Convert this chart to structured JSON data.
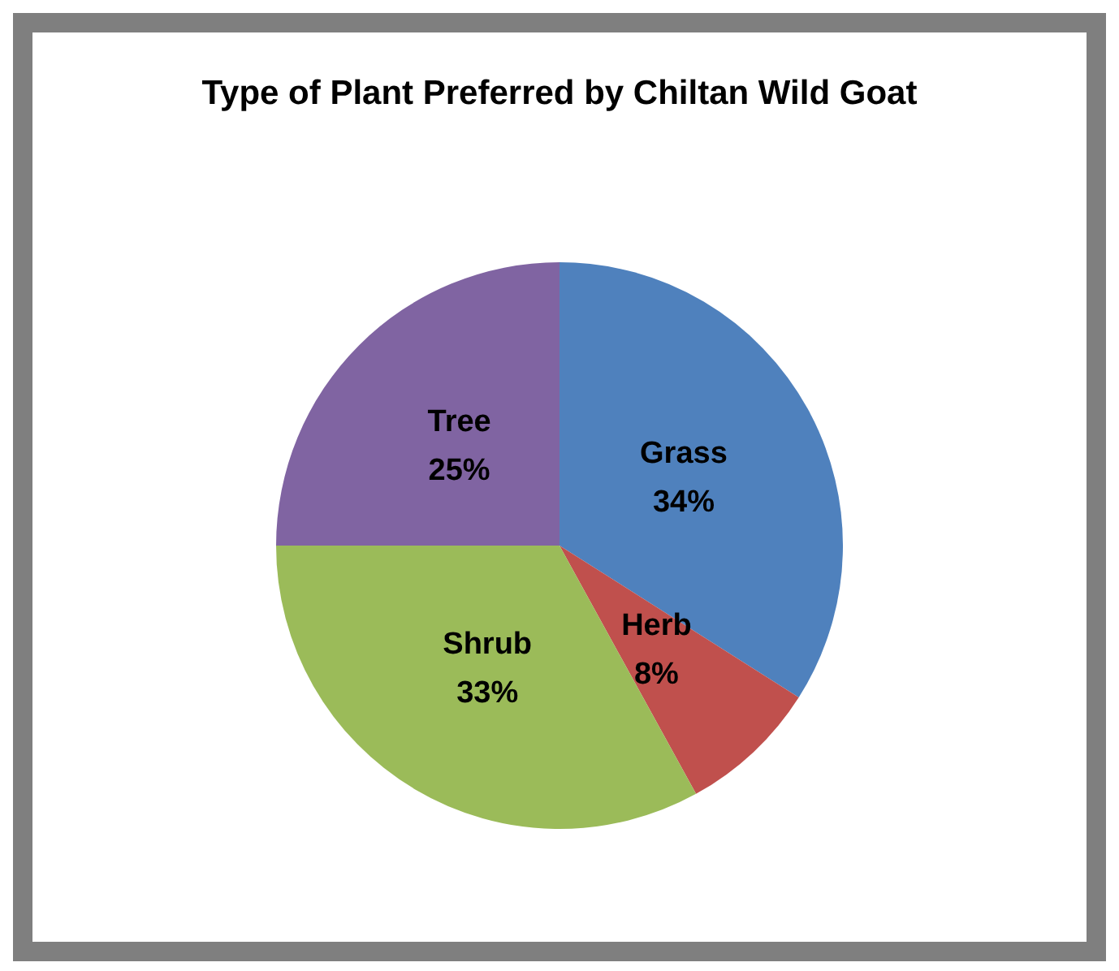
{
  "chart_data": {
    "type": "pie",
    "title": "Type of Plant Preferred by Chiltan Wild Goat",
    "categories": [
      "Grass",
      "Herb",
      "Shrub",
      "Tree"
    ],
    "values": [
      34,
      8,
      33,
      25
    ],
    "colors": [
      "#4f81bd",
      "#c0504d",
      "#9bbb59",
      "#8064a2"
    ],
    "value_labels": [
      "34%",
      "8%",
      "33%",
      "25%"
    ],
    "legend": false
  }
}
